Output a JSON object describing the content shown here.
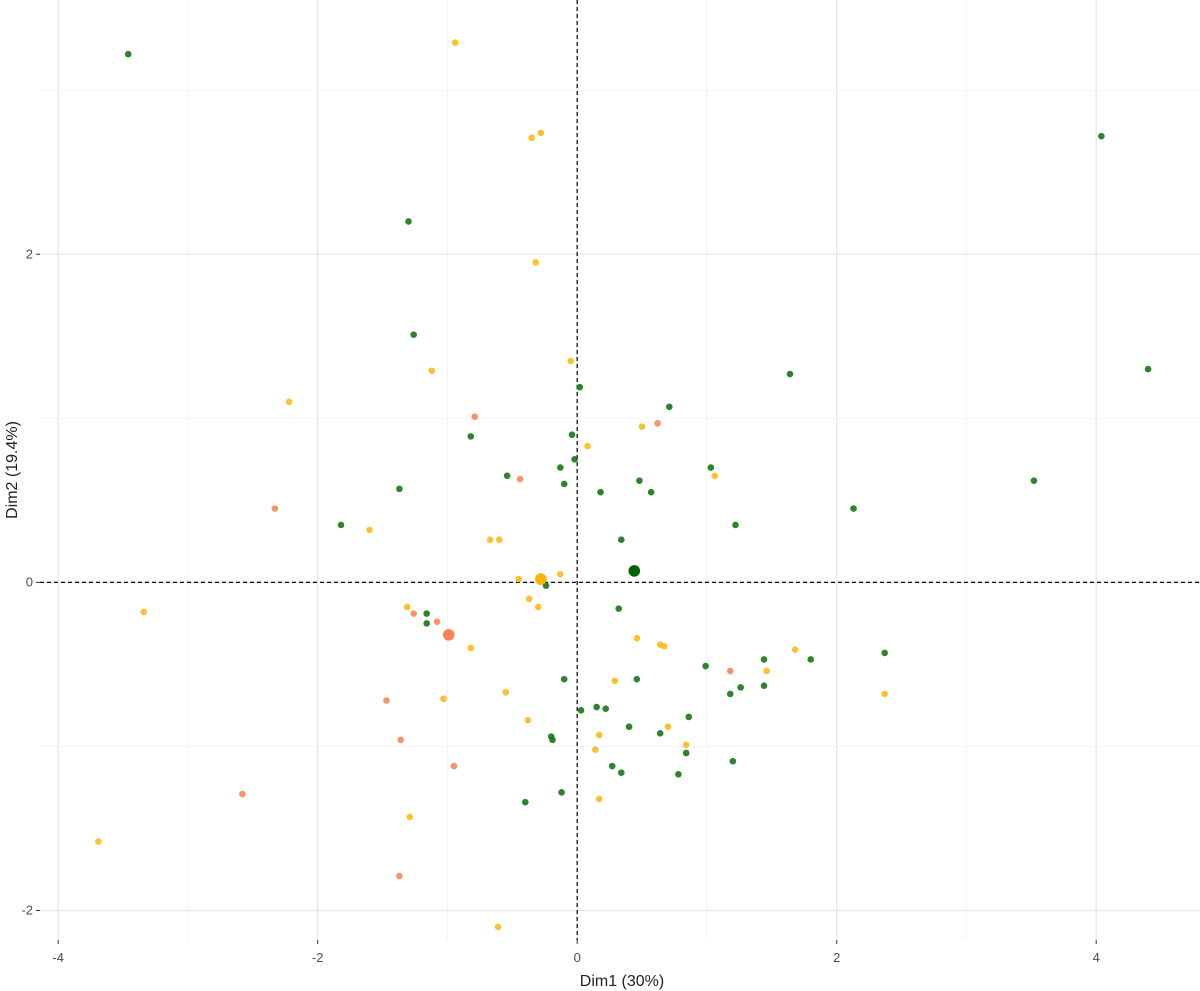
{
  "chart_data": {
    "type": "scatter",
    "xlabel": "Dim1 (30%)",
    "ylabel": "Dim2 (19.4%)",
    "xlim": [
      -4.14,
      4.8
    ],
    "ylim": [
      -2.18,
      3.55
    ],
    "xticks": [
      -4,
      -2,
      0,
      2,
      4
    ],
    "yticks": [
      -2,
      0,
      2
    ],
    "grid": true,
    "reference_lines": {
      "x": 0,
      "y": 0,
      "style": "dashed"
    },
    "legend": "none",
    "series": [
      {
        "color": "#1b7a1b",
        "centroid_color": "#006400",
        "centroid": [
          0.44,
          0.07
        ],
        "points": [
          [
            -3.46,
            3.22
          ],
          [
            4.04,
            2.72
          ],
          [
            -1.3,
            2.2
          ],
          [
            -1.26,
            1.51
          ],
          [
            0.02,
            1.19
          ],
          [
            4.4,
            1.3
          ],
          [
            1.64,
            1.27
          ],
          [
            0.71,
            1.07
          ],
          [
            -0.82,
            0.89
          ],
          [
            -0.04,
            0.9
          ],
          [
            -0.02,
            0.75
          ],
          [
            1.03,
            0.7
          ],
          [
            -0.13,
            0.7
          ],
          [
            -0.54,
            0.65
          ],
          [
            -1.37,
            0.57
          ],
          [
            0.48,
            0.62
          ],
          [
            -0.1,
            0.6
          ],
          [
            0.57,
            0.55
          ],
          [
            0.18,
            0.55
          ],
          [
            3.52,
            0.62
          ],
          [
            -1.82,
            0.35
          ],
          [
            2.13,
            0.45
          ],
          [
            1.22,
            0.35
          ],
          [
            0.34,
            0.26
          ],
          [
            -0.24,
            -0.02
          ],
          [
            -1.16,
            -0.19
          ],
          [
            -1.16,
            -0.25
          ],
          [
            0.32,
            -0.16
          ],
          [
            2.37,
            -0.43
          ],
          [
            0.99,
            -0.51
          ],
          [
            1.8,
            -0.47
          ],
          [
            1.44,
            -0.47
          ],
          [
            0.46,
            -0.59
          ],
          [
            -0.1,
            -0.59
          ],
          [
            1.26,
            -0.64
          ],
          [
            1.18,
            -0.68
          ],
          [
            1.44,
            -0.63
          ],
          [
            0.15,
            -0.76
          ],
          [
            0.22,
            -0.77
          ],
          [
            0.03,
            -0.78
          ],
          [
            0.86,
            -0.82
          ],
          [
            0.4,
            -0.88
          ],
          [
            -0.2,
            -0.94
          ],
          [
            -0.19,
            -0.96
          ],
          [
            0.64,
            -0.92
          ],
          [
            0.84,
            -1.04
          ],
          [
            0.27,
            -1.12
          ],
          [
            0.34,
            -1.16
          ],
          [
            1.2,
            -1.09
          ],
          [
            0.78,
            -1.17
          ],
          [
            -0.12,
            -1.28
          ],
          [
            -0.4,
            -1.34
          ]
        ]
      },
      {
        "color": "#fbbc1c",
        "centroid_color": "#fbb400",
        "centroid": [
          -0.28,
          0.02
        ],
        "points": [
          [
            -0.94,
            3.29
          ],
          [
            -0.28,
            2.74
          ],
          [
            -0.35,
            2.71
          ],
          [
            -0.32,
            1.95
          ],
          [
            -0.05,
            1.35
          ],
          [
            -1.12,
            1.29
          ],
          [
            -2.22,
            1.1
          ],
          [
            0.5,
            0.95
          ],
          [
            0.08,
            0.83
          ],
          [
            1.06,
            0.65
          ],
          [
            -1.6,
            0.32
          ],
          [
            -0.67,
            0.26
          ],
          [
            -0.6,
            0.26
          ],
          [
            -0.13,
            0.05
          ],
          [
            -0.45,
            0.02
          ],
          [
            -1.31,
            -0.15
          ],
          [
            -0.37,
            -0.1
          ],
          [
            -0.3,
            -0.15
          ],
          [
            0.46,
            -0.34
          ],
          [
            0.64,
            -0.38
          ],
          [
            0.67,
            -0.39
          ],
          [
            -0.82,
            -0.4
          ],
          [
            1.68,
            -0.41
          ],
          [
            1.46,
            -0.54
          ],
          [
            0.29,
            -0.6
          ],
          [
            -0.55,
            -0.67
          ],
          [
            -1.03,
            -0.71
          ],
          [
            2.37,
            -0.68
          ],
          [
            0.7,
            -0.88
          ],
          [
            -0.38,
            -0.84
          ],
          [
            0.17,
            -0.93
          ],
          [
            0.84,
            -0.99
          ],
          [
            0.14,
            -1.02
          ],
          [
            -3.34,
            -0.18
          ],
          [
            -1.29,
            -1.43
          ],
          [
            0.17,
            -1.32
          ],
          [
            -3.69,
            -1.58
          ],
          [
            -0.61,
            -2.1
          ]
        ]
      },
      {
        "color": "#f98a63",
        "centroid_color": "#ff7f50",
        "centroid": [
          -0.99,
          -0.32
        ],
        "points": [
          [
            -0.79,
            1.01
          ],
          [
            0.62,
            0.97
          ],
          [
            -0.44,
            0.63
          ],
          [
            -2.33,
            0.45
          ],
          [
            -1.26,
            -0.19
          ],
          [
            -1.08,
            -0.24
          ],
          [
            -1.47,
            -0.72
          ],
          [
            -1.36,
            -0.96
          ],
          [
            1.18,
            -0.54
          ],
          [
            -0.95,
            -1.12
          ],
          [
            -2.58,
            -1.29
          ],
          [
            -1.37,
            -1.79
          ]
        ]
      }
    ]
  }
}
